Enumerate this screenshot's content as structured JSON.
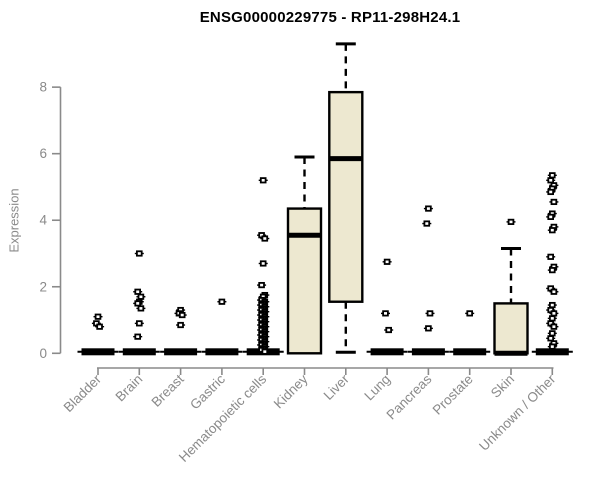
{
  "chart_data": {
    "type": "boxplot",
    "title": "ENSG00000229775 - RP11-298H24.1",
    "ylabel": "Expression",
    "yticks": [
      0,
      2,
      4,
      6,
      8
    ],
    "ylim": [
      0,
      9.6
    ],
    "grid": false,
    "legend": "none",
    "colors": {
      "box_fill": "#ede8d0",
      "box_stroke": "#000000",
      "axis": "#8a8a8a",
      "title": "#000000"
    },
    "categories": [
      "Bladder",
      "Brain",
      "Breast",
      "Gastric",
      "Hematopoietic cells",
      "Kidney",
      "Liver",
      "Lung",
      "Pancreas",
      "Prostate",
      "Skin",
      "Unknown / Other"
    ],
    "boxes": [
      {
        "category": "Bladder",
        "q1": 0,
        "median": 0,
        "q3": 0,
        "whisker_low": 0,
        "whisker_high": 0,
        "outliers": [
          1.1,
          0.9,
          0.8
        ]
      },
      {
        "category": "Brain",
        "q1": 0,
        "median": 0,
        "q3": 0,
        "whisker_low": 0,
        "whisker_high": 0,
        "outliers": [
          3.0,
          1.85,
          1.7,
          1.55,
          1.5,
          1.35,
          0.9,
          0.5
        ]
      },
      {
        "category": "Breast",
        "q1": 0,
        "median": 0,
        "q3": 0,
        "whisker_low": 0,
        "whisker_high": 0,
        "outliers": [
          1.3,
          1.2,
          1.15,
          0.85
        ]
      },
      {
        "category": "Gastric",
        "q1": 0,
        "median": 0,
        "q3": 0,
        "whisker_low": 0,
        "whisker_high": 0,
        "outliers": [
          1.55
        ]
      },
      {
        "category": "Hematopoietic cells",
        "q1": 0,
        "median": 0,
        "q3": 0,
        "whisker_low": 0,
        "whisker_high": 0,
        "outliers": [
          5.2,
          3.55,
          3.45,
          2.7,
          2.05,
          1.75,
          1.7,
          1.6,
          1.55,
          1.5,
          1.45,
          1.4,
          1.35,
          1.3,
          1.25,
          1.2,
          1.15,
          1.1,
          1.05,
          1.0,
          0.95,
          0.9,
          0.85,
          0.8,
          0.75,
          0.7,
          0.65,
          0.6,
          0.55,
          0.5,
          0.45,
          0.4,
          0.35,
          0.3,
          0.25,
          0.2,
          0.15,
          0.1,
          0.05
        ]
      },
      {
        "category": "Kidney",
        "q1": 0,
        "median": 3.55,
        "q3": 4.35,
        "whisker_low": 0,
        "whisker_high": 5.9,
        "outliers": []
      },
      {
        "category": "Liver",
        "q1": 1.55,
        "median": 5.85,
        "q3": 7.85,
        "whisker_low": 0,
        "whisker_high": 9.3,
        "outliers": []
      },
      {
        "category": "Lung",
        "q1": 0,
        "median": 0,
        "q3": 0,
        "whisker_low": 0,
        "whisker_high": 0,
        "outliers": [
          2.75,
          1.2,
          0.7
        ]
      },
      {
        "category": "Pancreas",
        "q1": 0,
        "median": 0,
        "q3": 0,
        "whisker_low": 0,
        "whisker_high": 0,
        "outliers": [
          4.35,
          3.9,
          1.2,
          0.75
        ]
      },
      {
        "category": "Prostate",
        "q1": 0,
        "median": 0,
        "q3": 0,
        "whisker_low": 0,
        "whisker_high": 0,
        "outliers": [
          1.2
        ]
      },
      {
        "category": "Skin",
        "q1": 0,
        "median": 0,
        "q3": 1.5,
        "whisker_low": 0,
        "whisker_high": 3.15,
        "outliers": [
          3.95
        ]
      },
      {
        "category": "Unknown / Other",
        "q1": 0,
        "median": 0,
        "q3": 0,
        "whisker_low": 0,
        "whisker_high": 0,
        "outliers": [
          5.35,
          5.2,
          5.05,
          4.95,
          4.85,
          4.55,
          4.2,
          4.1,
          3.8,
          3.7,
          2.9,
          2.6,
          2.5,
          1.95,
          1.85,
          1.45,
          1.3,
          1.2,
          1.05,
          0.9,
          0.8,
          0.6,
          0.45,
          0.3,
          0.2
        ]
      }
    ]
  }
}
